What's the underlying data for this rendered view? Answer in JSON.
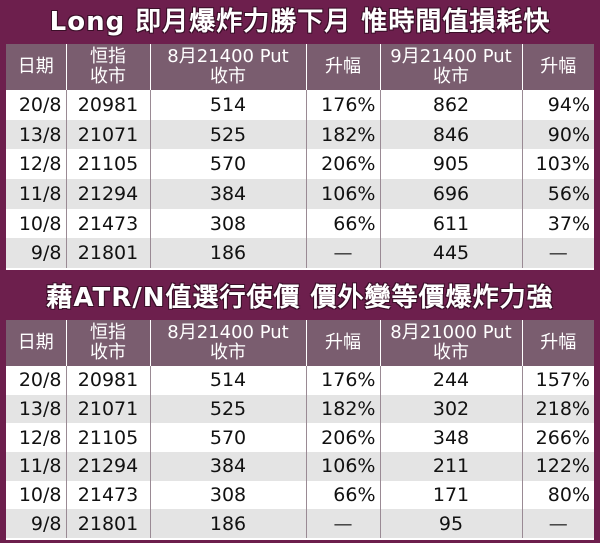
{
  "title_top": "Long 即月爆炸力勝下月  惟時間值損耗快",
  "title_bottom": "藉ATR/N值選行使價  價外變等價爆炸力強",
  "table_top": {
    "headers": {
      "date": "日期",
      "index_line1": "恒指",
      "index_line2": "收市",
      "put_a_line1": "8月21400 Put",
      "put_a_line2": "收市",
      "change_a": "升幅",
      "put_b_line1": "9月21400 Put",
      "put_b_line2": "收市",
      "change_b": "升幅"
    },
    "rows": [
      {
        "date": "20/8",
        "index": "20981",
        "put_a": "514",
        "chg_a": "176%",
        "put_b": "862",
        "chg_b": "94%"
      },
      {
        "date": "13/8",
        "index": "21071",
        "put_a": "525",
        "chg_a": "182%",
        "put_b": "846",
        "chg_b": "90%"
      },
      {
        "date": "12/8",
        "index": "21105",
        "put_a": "570",
        "chg_a": "206%",
        "put_b": "905",
        "chg_b": "103%"
      },
      {
        "date": "11/8",
        "index": "21294",
        "put_a": "384",
        "chg_a": "106%",
        "put_b": "696",
        "chg_b": "56%"
      },
      {
        "date": "10/8",
        "index": "21473",
        "put_a": "308",
        "chg_a": "66%",
        "put_b": "611",
        "chg_b": "37%"
      },
      {
        "date": "9/8",
        "index": "21801",
        "put_a": "186",
        "chg_a": "—",
        "put_b": "445",
        "chg_b": "—"
      }
    ]
  },
  "table_bottom": {
    "headers": {
      "date": "日期",
      "index_line1": "恒指",
      "index_line2": "收市",
      "put_a_line1": "8月21400 Put",
      "put_a_line2": "收市",
      "change_a": "升幅",
      "put_b_line1": "8月21000 Put",
      "put_b_line2": "收市",
      "change_b": "升幅"
    },
    "rows": [
      {
        "date": "20/8",
        "index": "20981",
        "put_a": "514",
        "chg_a": "176%",
        "put_b": "244",
        "chg_b": "157%"
      },
      {
        "date": "13/8",
        "index": "21071",
        "put_a": "525",
        "chg_a": "182%",
        "put_b": "302",
        "chg_b": "218%"
      },
      {
        "date": "12/8",
        "index": "21105",
        "put_a": "570",
        "chg_a": "206%",
        "put_b": "348",
        "chg_b": "266%"
      },
      {
        "date": "11/8",
        "index": "21294",
        "put_a": "384",
        "chg_a": "106%",
        "put_b": "211",
        "chg_b": "122%"
      },
      {
        "date": "10/8",
        "index": "21473",
        "put_a": "308",
        "chg_a": "66%",
        "put_b": "171",
        "chg_b": "80%"
      },
      {
        "date": "9/8",
        "index": "21801",
        "put_a": "186",
        "chg_a": "—",
        "put_b": "95",
        "chg_b": "—"
      }
    ]
  }
}
